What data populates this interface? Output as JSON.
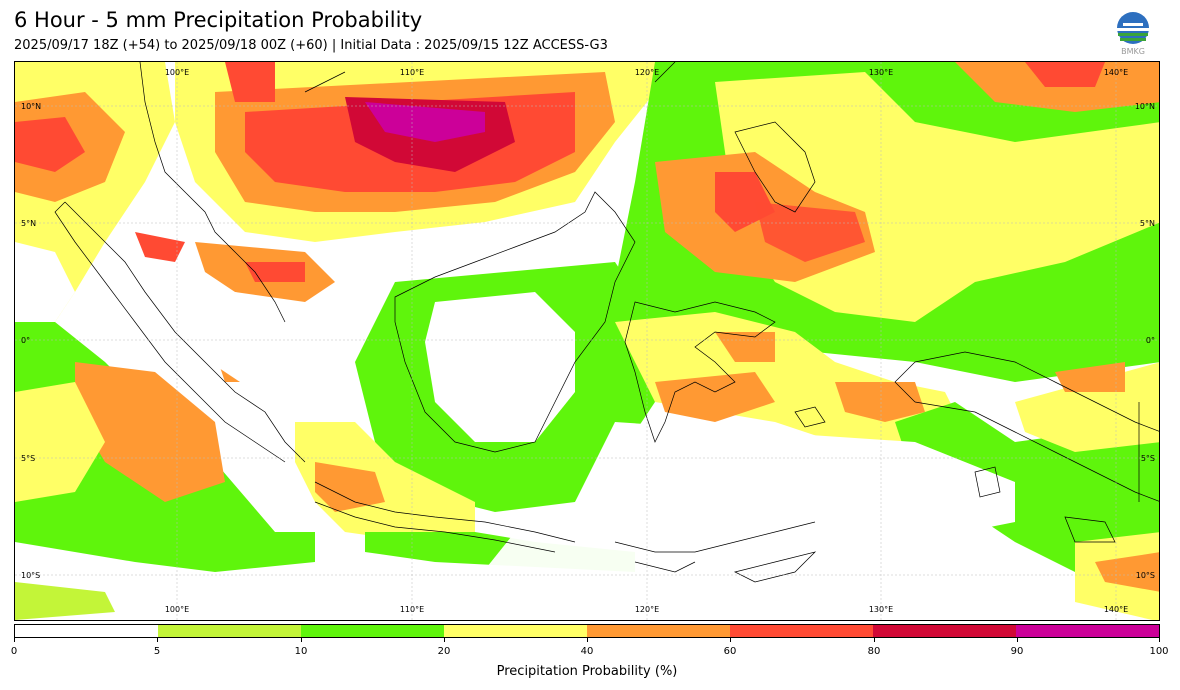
{
  "header": {
    "title": "6 Hour - 5 mm Precipitation Probability",
    "subtitle": "2025/09/17 18Z (+54) to 2025/09/18 00Z (+60) | Initial Data : 2025/09/15 12Z ACCESS-G3"
  },
  "logo": {
    "icon": "bmkg-logo-icon",
    "text": "BMKG"
  },
  "map": {
    "lon_labels": [
      "100°E",
      "110°E",
      "120°E",
      "130°E",
      "140°E"
    ],
    "lat_labels": [
      "10°N",
      "5°N",
      "0°",
      "5°S",
      "10°S"
    ],
    "gridlines": true
  },
  "colorbar": {
    "label": "Precipitation Probability (%)",
    "ticks": [
      "0",
      "5",
      "10",
      "20",
      "40",
      "60",
      "80",
      "90",
      "100"
    ],
    "colors": [
      "#ffffff",
      "#c3f538",
      "#5ff50c",
      "#ffff66",
      "#ff9933",
      "#ff4a33",
      "#d10836",
      "#cc0099"
    ]
  }
}
